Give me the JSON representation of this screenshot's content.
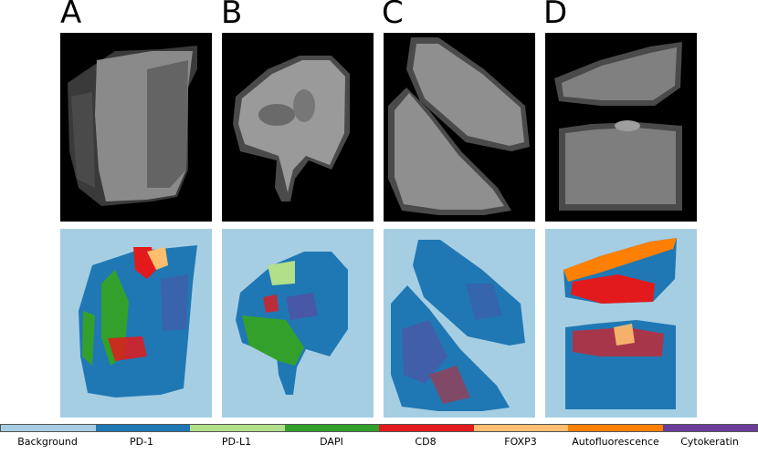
{
  "panels": [
    {
      "letter": "A"
    },
    {
      "letter": "B"
    },
    {
      "letter": "C"
    },
    {
      "letter": "D"
    }
  ],
  "legend": {
    "items": [
      {
        "label": "Background",
        "color": "#a6cee3"
      },
      {
        "label": "PD-1",
        "color": "#1f78b4"
      },
      {
        "label": "PD-L1",
        "color": "#b2df8a"
      },
      {
        "label": "DAPI",
        "color": "#33a02c"
      },
      {
        "label": "CD8",
        "color": "#e31a1c"
      },
      {
        "label": "FOXP3",
        "color": "#fdbf6f"
      },
      {
        "label": "Autofluorescence",
        "color": "#ff7f00"
      },
      {
        "label": "Cytokeratin",
        "color": "#6a3d9a"
      }
    ]
  }
}
